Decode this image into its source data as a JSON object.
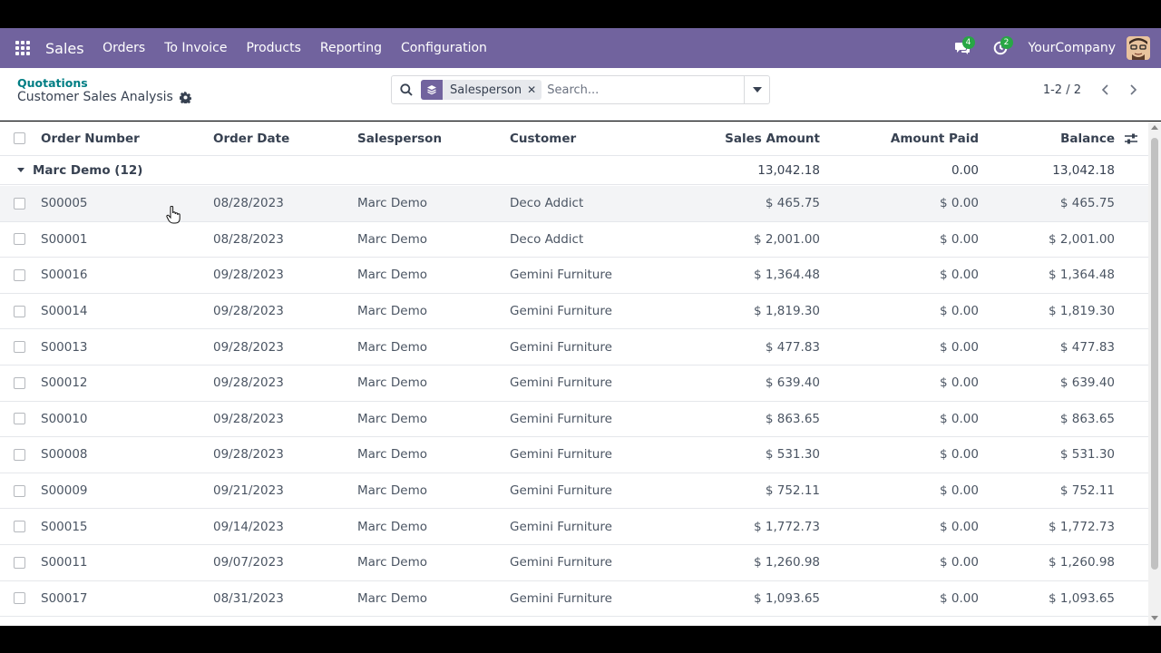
{
  "navbar": {
    "app_name": "Sales",
    "menu": [
      "Orders",
      "To Invoice",
      "Products",
      "Reporting",
      "Configuration"
    ],
    "messages_count": "4",
    "activities_count": "2",
    "company": "YourCompany",
    "color": "#71639e"
  },
  "breadcrumb": {
    "parent": "Quotations",
    "current": "Customer Sales Analysis"
  },
  "search": {
    "facet_label": "Salesperson",
    "placeholder": "Search..."
  },
  "pager": {
    "value": "1-2 / 2"
  },
  "table": {
    "columns": [
      "Order Number",
      "Order Date",
      "Salesperson",
      "Customer",
      "Sales Amount",
      "Amount Paid",
      "Balance"
    ],
    "group": {
      "label": "Marc Demo (12)",
      "sales_amount": "13,042.18",
      "amount_paid": "0.00",
      "balance": "13,042.18"
    },
    "rows": [
      {
        "number": "S00005",
        "date": "08/28/2023",
        "salesperson": "Marc Demo",
        "customer": "Deco Addict",
        "sales": "$ 465.75",
        "paid": "$ 0.00",
        "balance": "$ 465.75"
      },
      {
        "number": "S00001",
        "date": "08/28/2023",
        "salesperson": "Marc Demo",
        "customer": "Deco Addict",
        "sales": "$ 2,001.00",
        "paid": "$ 0.00",
        "balance": "$ 2,001.00"
      },
      {
        "number": "S00016",
        "date": "09/28/2023",
        "salesperson": "Marc Demo",
        "customer": "Gemini Furniture",
        "sales": "$ 1,364.48",
        "paid": "$ 0.00",
        "balance": "$ 1,364.48"
      },
      {
        "number": "S00014",
        "date": "09/28/2023",
        "salesperson": "Marc Demo",
        "customer": "Gemini Furniture",
        "sales": "$ 1,819.30",
        "paid": "$ 0.00",
        "balance": "$ 1,819.30"
      },
      {
        "number": "S00013",
        "date": "09/28/2023",
        "salesperson": "Marc Demo",
        "customer": "Gemini Furniture",
        "sales": "$ 477.83",
        "paid": "$ 0.00",
        "balance": "$ 477.83"
      },
      {
        "number": "S00012",
        "date": "09/28/2023",
        "salesperson": "Marc Demo",
        "customer": "Gemini Furniture",
        "sales": "$ 639.40",
        "paid": "$ 0.00",
        "balance": "$ 639.40"
      },
      {
        "number": "S00010",
        "date": "09/28/2023",
        "salesperson": "Marc Demo",
        "customer": "Gemini Furniture",
        "sales": "$ 863.65",
        "paid": "$ 0.00",
        "balance": "$ 863.65"
      },
      {
        "number": "S00008",
        "date": "09/28/2023",
        "salesperson": "Marc Demo",
        "customer": "Gemini Furniture",
        "sales": "$ 531.30",
        "paid": "$ 0.00",
        "balance": "$ 531.30"
      },
      {
        "number": "S00009",
        "date": "09/21/2023",
        "salesperson": "Marc Demo",
        "customer": "Gemini Furniture",
        "sales": "$ 752.11",
        "paid": "$ 0.00",
        "balance": "$ 752.11"
      },
      {
        "number": "S00015",
        "date": "09/14/2023",
        "salesperson": "Marc Demo",
        "customer": "Gemini Furniture",
        "sales": "$ 1,772.73",
        "paid": "$ 0.00",
        "balance": "$ 1,772.73"
      },
      {
        "number": "S00011",
        "date": "09/07/2023",
        "salesperson": "Marc Demo",
        "customer": "Gemini Furniture",
        "sales": "$ 1,260.98",
        "paid": "$ 0.00",
        "balance": "$ 1,260.98"
      },
      {
        "number": "S00017",
        "date": "08/31/2023",
        "salesperson": "Marc Demo",
        "customer": "Gemini Furniture",
        "sales": "$ 1,093.65",
        "paid": "$ 0.00",
        "balance": "$ 1,093.65"
      }
    ]
  }
}
